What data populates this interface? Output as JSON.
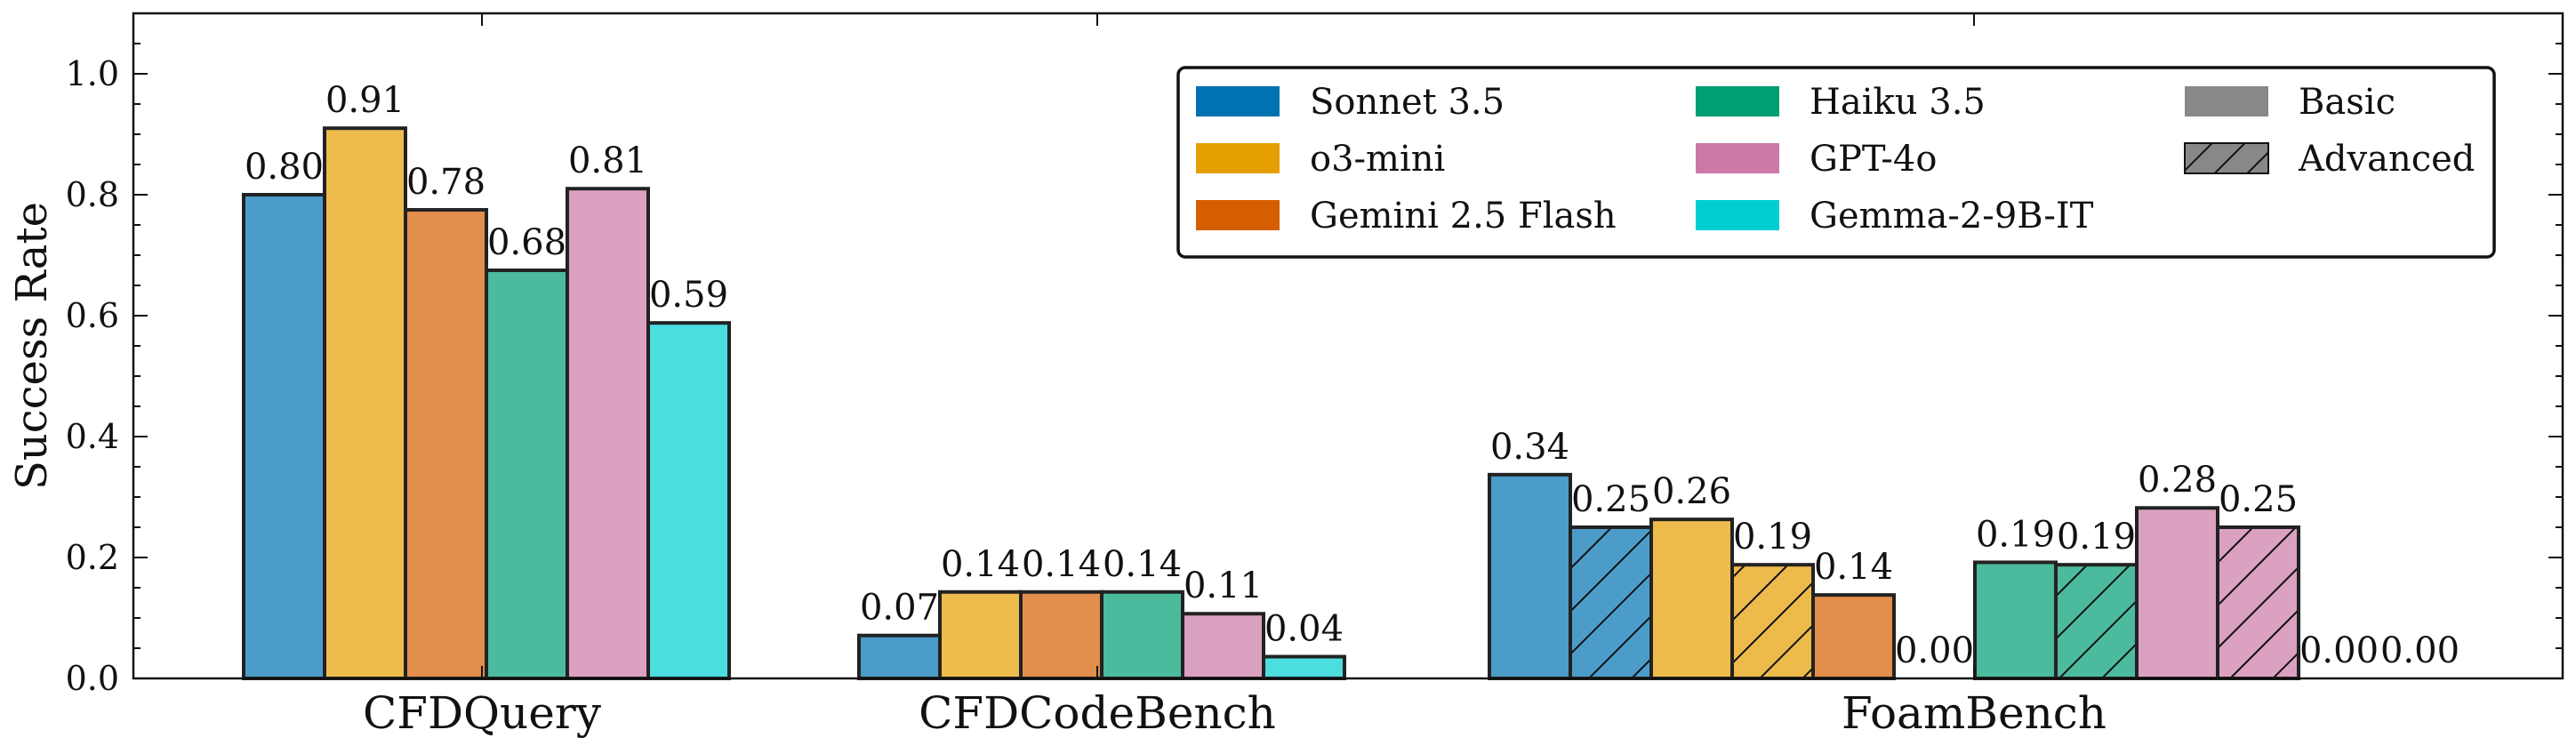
{
  "chart_data": {
    "type": "bar",
    "ylabel": "Success Rate",
    "xlabel": "",
    "ylim": [
      0,
      1.1
    ],
    "yticks": [
      "0.0",
      "0.2",
      "0.4",
      "0.6",
      "0.8",
      "1.0"
    ],
    "categories": [
      "CFDQuery",
      "CFDCodeBench",
      "FoamBench"
    ],
    "legend_position": "top-right",
    "grid": false,
    "colors": {
      "Sonnet 3.5": "#0072B2",
      "o3-mini": "#E69F00",
      "Gemini 2.5 Flash": "#D55E00",
      "Haiku 3.5": "#009E73",
      "GPT-4o": "#CC79A7",
      "Gemma-2-9B-IT": "#00CED1"
    },
    "legend": {
      "models": [
        "Sonnet 3.5",
        "o3-mini",
        "Gemini 2.5 Flash",
        "Haiku 3.5",
        "GPT-4o",
        "Gemma-2-9B-IT"
      ],
      "styles": [
        "Basic",
        "Advanced"
      ]
    },
    "groups": [
      {
        "category": "CFDQuery",
        "bars": [
          {
            "model": "Sonnet 3.5",
            "style": "Basic",
            "value": 0.8,
            "label": "0.80"
          },
          {
            "model": "o3-mini",
            "style": "Basic",
            "value": 0.91,
            "label": "0.91"
          },
          {
            "model": "Gemini 2.5 Flash",
            "style": "Basic",
            "value": 0.775,
            "label": "0.78"
          },
          {
            "model": "Haiku 3.5",
            "style": "Basic",
            "value": 0.675,
            "label": "0.68"
          },
          {
            "model": "GPT-4o",
            "style": "Basic",
            "value": 0.81,
            "label": "0.81"
          },
          {
            "model": "Gemma-2-9B-IT",
            "style": "Basic",
            "value": 0.588,
            "label": "0.59"
          }
        ]
      },
      {
        "category": "CFDCodeBench",
        "bars": [
          {
            "model": "Sonnet 3.5",
            "style": "Basic",
            "value": 0.071,
            "label": "0.07"
          },
          {
            "model": "o3-mini",
            "style": "Basic",
            "value": 0.143,
            "label": "0.14"
          },
          {
            "model": "Gemini 2.5 Flash",
            "style": "Basic",
            "value": 0.143,
            "label": "0.14"
          },
          {
            "model": "Haiku 3.5",
            "style": "Basic",
            "value": 0.143,
            "label": "0.14"
          },
          {
            "model": "GPT-4o",
            "style": "Basic",
            "value": 0.107,
            "label": "0.11"
          },
          {
            "model": "Gemma-2-9B-IT",
            "style": "Basic",
            "value": 0.036,
            "label": "0.04"
          }
        ]
      },
      {
        "category": "FoamBench",
        "bars": [
          {
            "model": "Sonnet 3.5",
            "style": "Basic",
            "value": 0.337,
            "label": "0.34"
          },
          {
            "model": "Sonnet 3.5",
            "style": "Advanced",
            "value": 0.25,
            "label": "0.25"
          },
          {
            "model": "o3-mini",
            "style": "Basic",
            "value": 0.263,
            "label": "0.26"
          },
          {
            "model": "o3-mini",
            "style": "Advanced",
            "value": 0.188,
            "label": "0.19"
          },
          {
            "model": "Gemini 2.5 Flash",
            "style": "Basic",
            "value": 0.138,
            "label": "0.14"
          },
          {
            "model": "Gemini 2.5 Flash",
            "style": "Advanced",
            "value": 0.0,
            "label": "0.00"
          },
          {
            "model": "Haiku 3.5",
            "style": "Basic",
            "value": 0.192,
            "label": "0.19"
          },
          {
            "model": "Haiku 3.5",
            "style": "Advanced",
            "value": 0.188,
            "label": "0.19"
          },
          {
            "model": "GPT-4o",
            "style": "Basic",
            "value": 0.282,
            "label": "0.28"
          },
          {
            "model": "GPT-4o",
            "style": "Advanced",
            "value": 0.25,
            "label": "0.25"
          },
          {
            "model": "Gemma-2-9B-IT",
            "style": "Basic",
            "value": 0.0,
            "label": "0.00"
          },
          {
            "model": "Gemma-2-9B-IT",
            "style": "Advanced",
            "value": 0.0,
            "label": "0.00"
          }
        ]
      }
    ]
  }
}
